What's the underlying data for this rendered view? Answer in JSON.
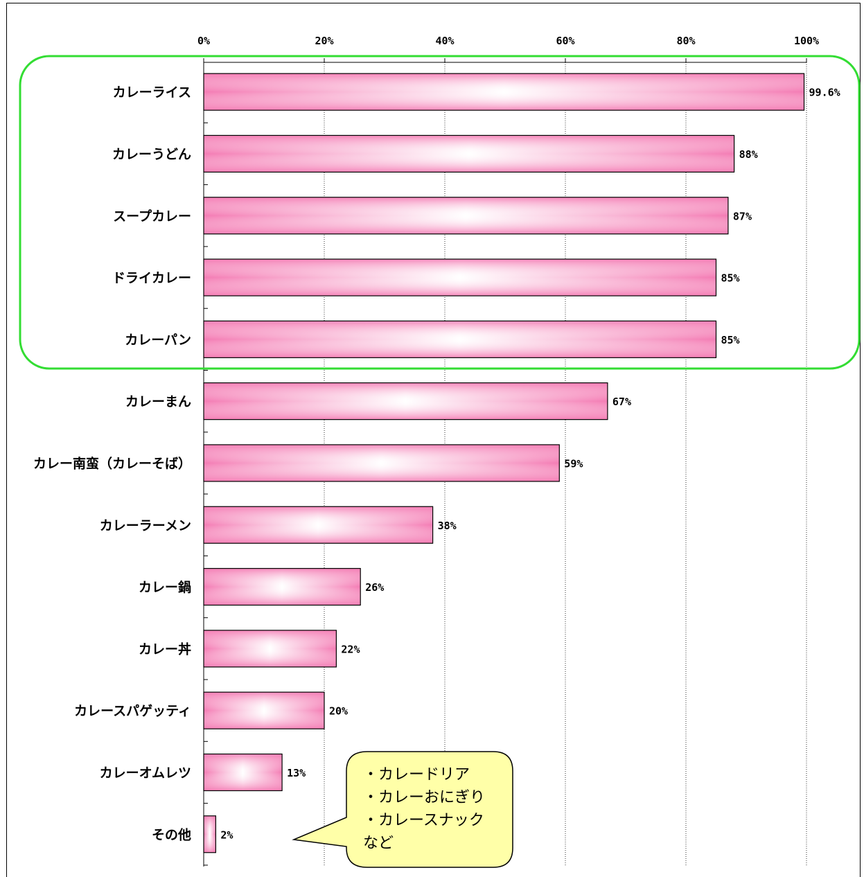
{
  "chart_data": {
    "type": "bar",
    "orientation": "horizontal",
    "categories": [
      "カレーライス",
      "カレーうどん",
      "スープカレー",
      "ドライカレー",
      "カレーパン",
      "カレーまん",
      "カレー南蛮（カレーそば）",
      "カレーラーメン",
      "カレー鍋",
      "カレー丼",
      "カレースパゲッティ",
      "カレーオムレツ",
      "その他"
    ],
    "values": [
      99.6,
      88,
      87,
      85,
      85,
      67,
      59,
      38,
      26,
      22,
      20,
      13,
      2
    ],
    "value_labels": [
      "99.6%",
      "88%",
      "87%",
      "85%",
      "85%",
      "67%",
      "59%",
      "38%",
      "26%",
      "22%",
      "20%",
      "13%",
      "2%"
    ],
    "xlim": [
      0,
      100
    ],
    "x_ticks": [
      "0%",
      "20%",
      "40%",
      "60%",
      "80%",
      "100%"
    ],
    "x_axis_position": "top",
    "grid": true,
    "highlight_group": {
      "first_n": 5,
      "color": "#33dd33"
    },
    "bar_color": "#f47cb4",
    "bar_highlight_color": "#ffffff"
  },
  "annotation": {
    "lines": [
      "・カレードリア",
      "・カレーおにぎり",
      "・カレースナック",
      "など"
    ],
    "fill": "#ffffa8",
    "target_category": "その他"
  }
}
